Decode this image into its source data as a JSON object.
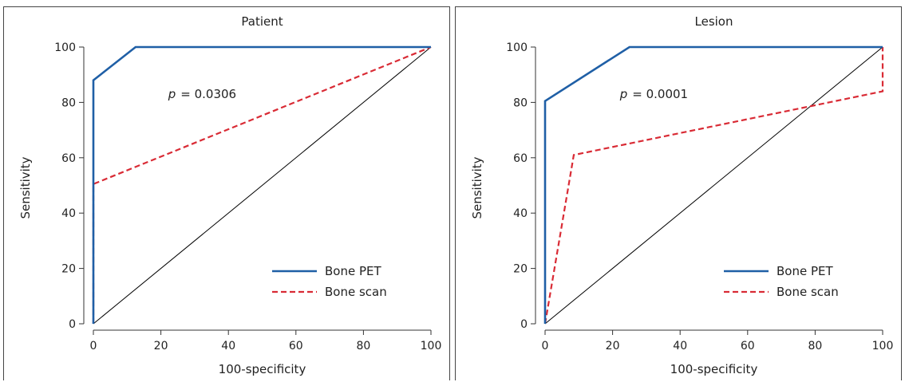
{
  "chart_data": [
    {
      "type": "line",
      "title": "Patient",
      "xlabel": "100-specificity",
      "ylabel": "Sensitivity",
      "xlim": [
        0,
        100
      ],
      "ylim": [
        0,
        100
      ],
      "xticks": [
        "0",
        "20",
        "40",
        "60",
        "80",
        "100"
      ],
      "yticks": [
        "0",
        "20",
        "40",
        "60",
        "80",
        "100"
      ],
      "annotation": {
        "p_label": "p",
        "p_text": "= 0.0306",
        "x": 25,
        "y": 83
      },
      "legend_position": "bottom-right",
      "series": [
        {
          "name": "Bone PET",
          "color": "#1f5fa6",
          "style": "solid",
          "x": [
            0,
            0,
            12.5,
            100
          ],
          "y": [
            0,
            88,
            100,
            100
          ]
        },
        {
          "name": "Bone scan",
          "color": "#d92b35",
          "style": "dashed",
          "x": [
            0,
            0,
            100
          ],
          "y": [
            0,
            50.5,
            100
          ]
        }
      ],
      "reference_line": {
        "x": [
          0,
          100
        ],
        "y": [
          0,
          100
        ],
        "color": "#000000"
      }
    },
    {
      "type": "line",
      "title": "Lesion",
      "xlabel": "100-specificity",
      "ylabel": "Sensitivity",
      "xlim": [
        0,
        100
      ],
      "ylim": [
        0,
        100
      ],
      "xticks": [
        "0",
        "20",
        "40",
        "60",
        "80",
        "100"
      ],
      "yticks": [
        "0",
        "20",
        "40",
        "60",
        "80",
        "100"
      ],
      "annotation": {
        "p_label": "p",
        "p_text": "= 0.0001",
        "x": 25,
        "y": 83
      },
      "legend_position": "bottom-right",
      "series": [
        {
          "name": "Bone PET",
          "color": "#1f5fa6",
          "style": "solid",
          "x": [
            0,
            0,
            25,
            100
          ],
          "y": [
            0,
            80.5,
            100,
            100
          ]
        },
        {
          "name": "Bone scan",
          "color": "#d92b35",
          "style": "dashed",
          "x": [
            0,
            8.5,
            100,
            100
          ],
          "y": [
            0,
            61,
            84,
            100
          ]
        }
      ],
      "reference_line": {
        "x": [
          0,
          100
        ],
        "y": [
          0,
          100
        ],
        "color": "#000000"
      }
    }
  ]
}
